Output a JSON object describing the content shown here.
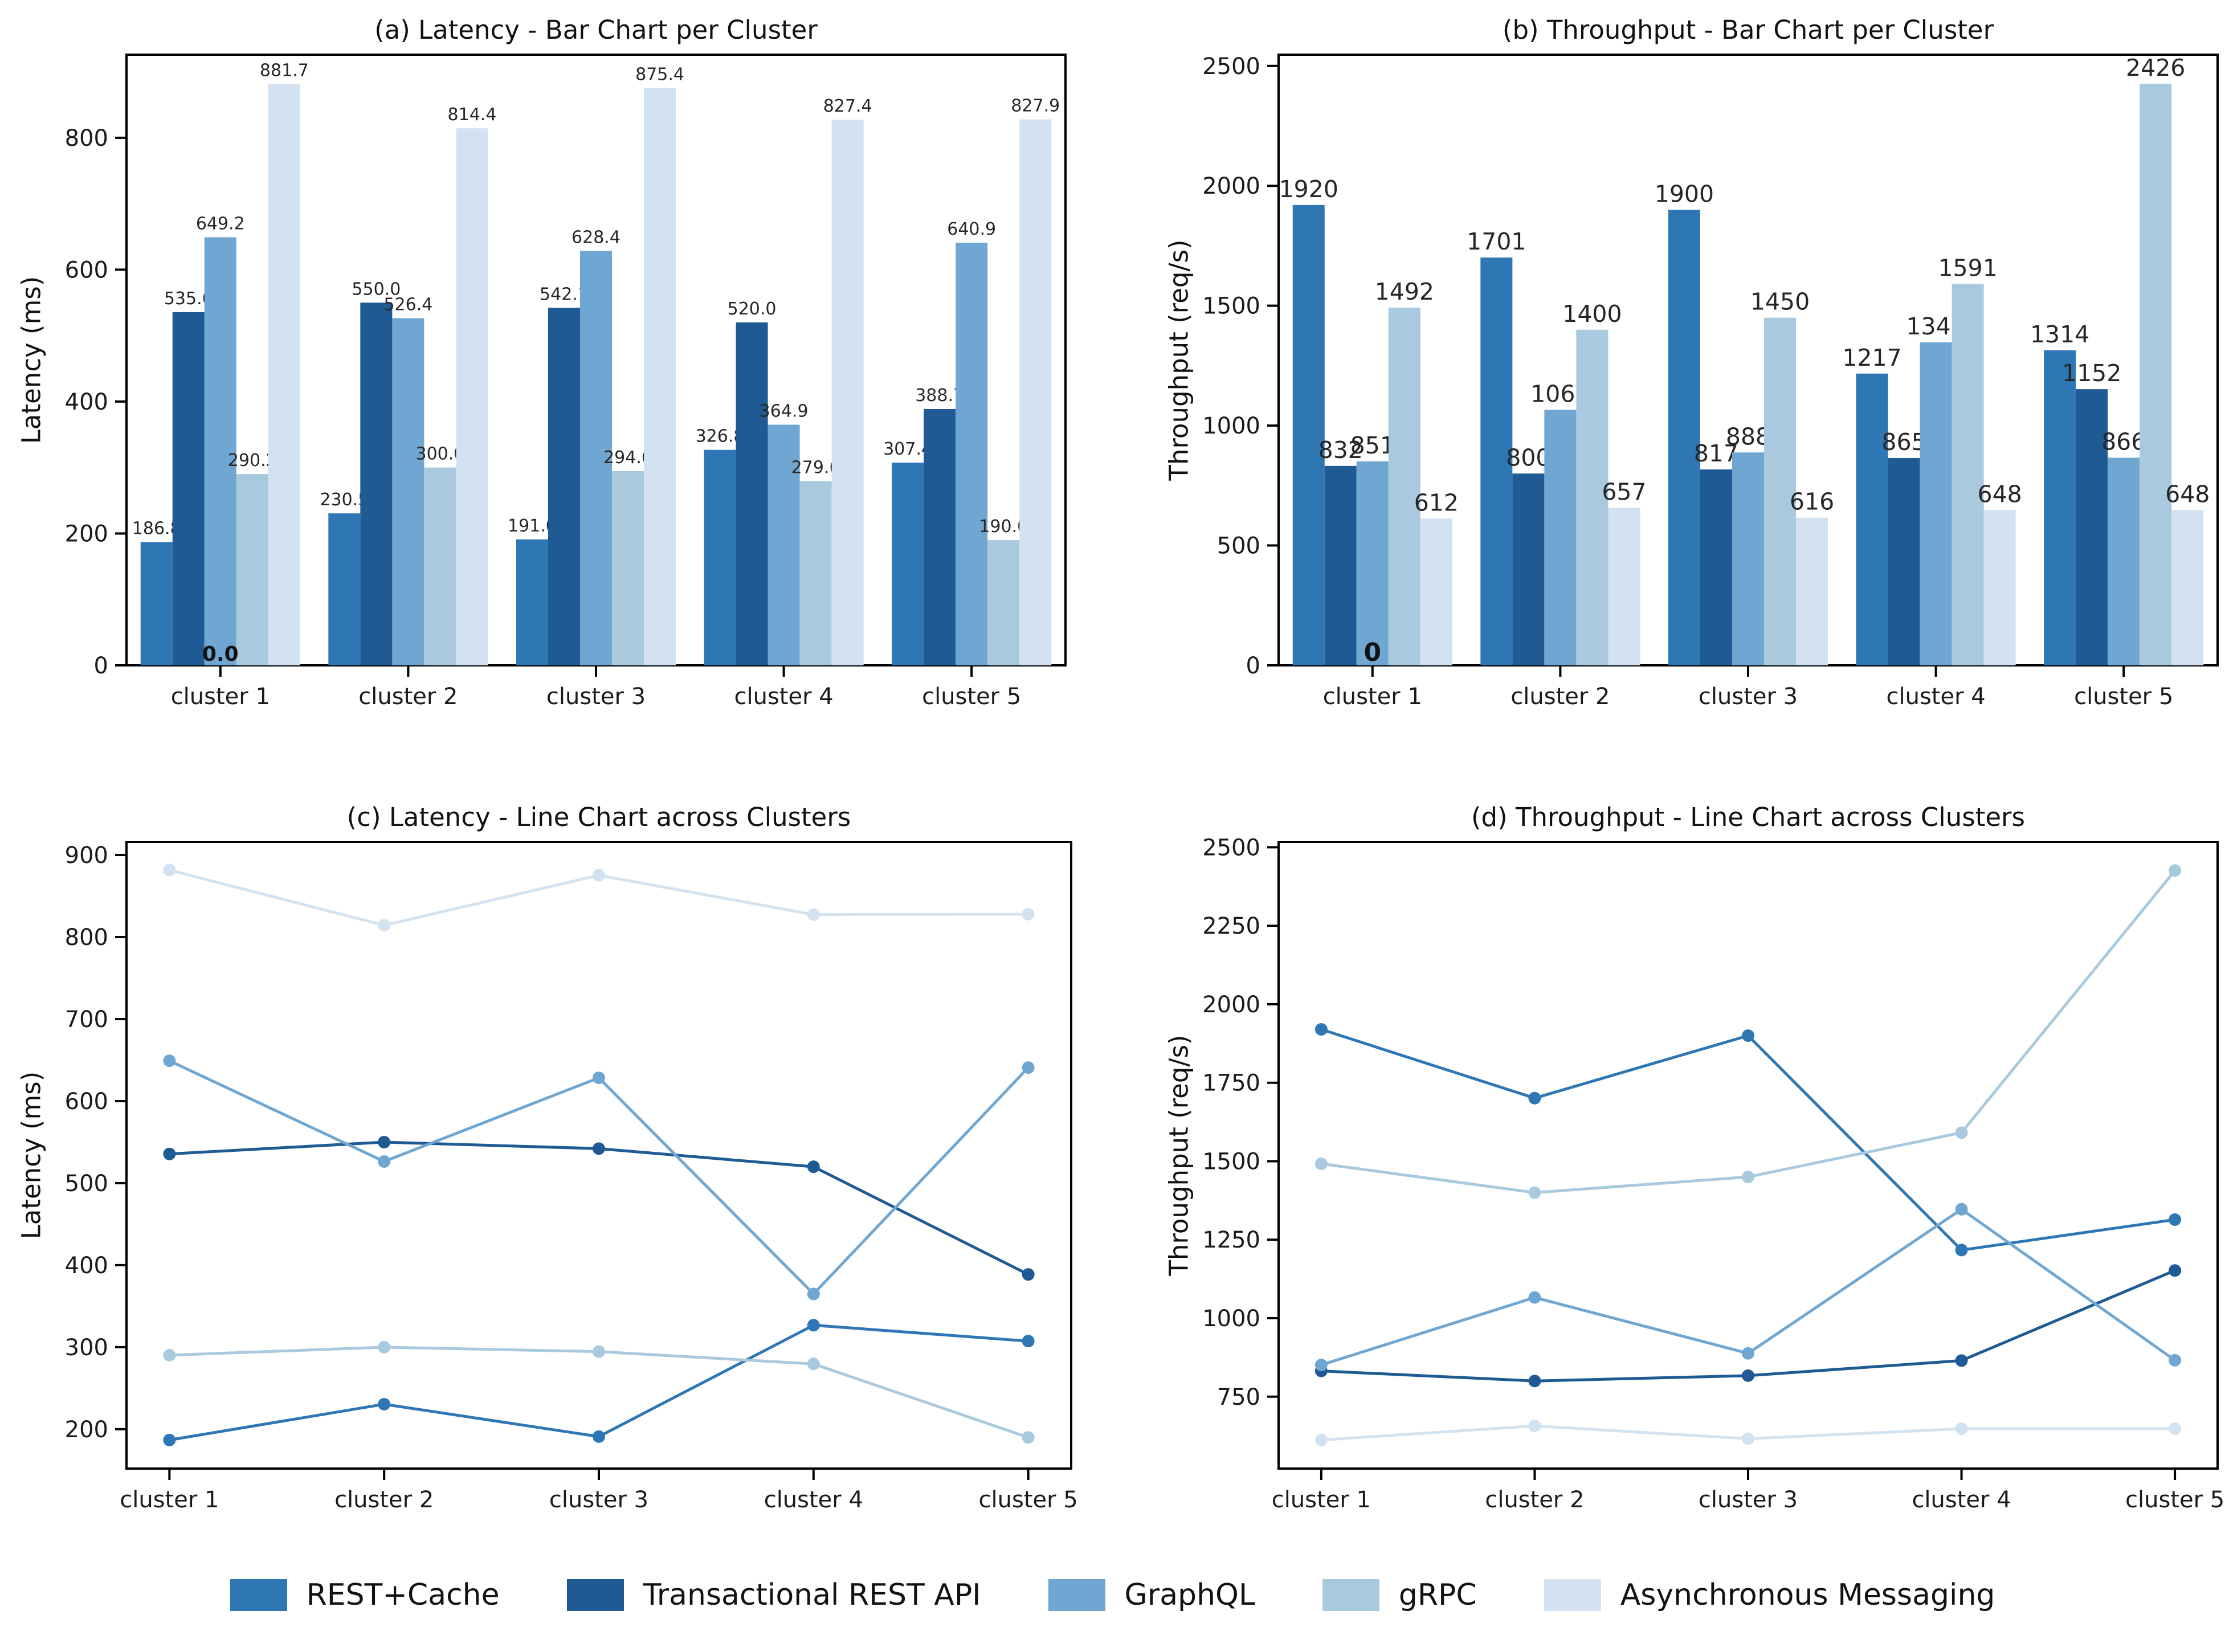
{
  "series_colors": [
    "#2f76b4",
    "#1f5a94",
    "#6fa7d2",
    "#a9cade",
    "#d3e2f1"
  ],
  "axis_color": "#000000",
  "tick_label_color": "#1a1a1a",
  "value_label_color": "#262626",
  "legend": {
    "position": "bottom center",
    "items": [
      "REST+Cache",
      "Transactional REST API",
      "GraphQL",
      "gRPC",
      "Asynchronous Messaging"
    ]
  },
  "chart_data": [
    {
      "id": "a",
      "type": "bar",
      "title": "(a) Latency - Bar Chart per Cluster",
      "xlabel": "",
      "ylabel": "Latency (ms)",
      "categories": [
        "cluster 1",
        "cluster 2",
        "cluster 3",
        "cluster 4",
        "cluster 5"
      ],
      "yticks": [
        0,
        200,
        400,
        600,
        800
      ],
      "ylim": [
        0,
        926
      ],
      "grid": false,
      "value_label_decimals": 1,
      "zero_annotation": "0.0",
      "series": [
        {
          "name": "REST+Cache",
          "values": [
            186.8,
            230.5,
            191.0,
            326.8,
            307.4
          ]
        },
        {
          "name": "Transactional REST API",
          "values": [
            535.6,
            550.0,
            542.1,
            520.0,
            388.7
          ]
        },
        {
          "name": "GraphQL",
          "values": [
            649.2,
            526.4,
            628.4,
            364.9,
            640.9
          ]
        },
        {
          "name": "gRPC",
          "values": [
            290.2,
            300.0,
            294.6,
            279.6,
            190.0
          ]
        },
        {
          "name": "Asynchronous Messaging",
          "values": [
            881.7,
            814.4,
            875.4,
            827.4,
            827.9
          ]
        }
      ]
    },
    {
      "id": "b",
      "type": "bar",
      "title": "(b) Throughput - Bar Chart per Cluster",
      "xlabel": "",
      "ylabel": "Throughput (req/s)",
      "categories": [
        "cluster 1",
        "cluster 2",
        "cluster 3",
        "cluster 4",
        "cluster 5"
      ],
      "yticks": [
        0,
        500,
        1000,
        1500,
        2000,
        2500
      ],
      "ylim": [
        0,
        2547
      ],
      "grid": false,
      "value_label_decimals": 0,
      "zero_annotation": "0",
      "series": [
        {
          "name": "REST+Cache",
          "values": [
            1920,
            1701,
            1900,
            1217,
            1314
          ]
        },
        {
          "name": "Transactional REST API",
          "values": [
            832,
            800,
            817,
            865,
            1152
          ]
        },
        {
          "name": "GraphQL",
          "values": [
            851,
            1066,
            888,
            1347,
            866
          ]
        },
        {
          "name": "gRPC",
          "values": [
            1492,
            1400,
            1450,
            1591,
            2426
          ]
        },
        {
          "name": "Asynchronous Messaging",
          "values": [
            612,
            657,
            616,
            648,
            648
          ]
        }
      ]
    },
    {
      "id": "c",
      "type": "line",
      "title": "(c) Latency - Line Chart across Clusters",
      "xlabel": "",
      "ylabel": "Latency (ms)",
      "categories": [
        "cluster 1",
        "cluster 2",
        "cluster 3",
        "cluster 4",
        "cluster 5"
      ],
      "yticks": [
        200,
        300,
        400,
        500,
        600,
        700,
        800,
        900
      ],
      "ylim": [
        152,
        916
      ],
      "grid": false,
      "series": [
        {
          "name": "REST+Cache",
          "values": [
            186.8,
            230.5,
            191.0,
            326.8,
            307.4
          ]
        },
        {
          "name": "Transactional REST API",
          "values": [
            535.6,
            550.0,
            542.1,
            520.0,
            388.7
          ]
        },
        {
          "name": "GraphQL",
          "values": [
            649.2,
            526.4,
            628.4,
            364.9,
            640.9
          ]
        },
        {
          "name": "gRPC",
          "values": [
            290.2,
            300.0,
            294.6,
            279.6,
            190.0
          ]
        },
        {
          "name": "Asynchronous Messaging",
          "values": [
            881.7,
            814.4,
            875.4,
            827.4,
            827.9
          ]
        }
      ]
    },
    {
      "id": "d",
      "type": "line",
      "title": "(d) Throughput - Line Chart across Clusters",
      "xlabel": "",
      "ylabel": "Throughput (req/s)",
      "categories": [
        "cluster 1",
        "cluster 2",
        "cluster 3",
        "cluster 4",
        "cluster 5"
      ],
      "yticks": [
        750,
        1000,
        1250,
        1500,
        1750,
        2000,
        2250,
        2500
      ],
      "ylim": [
        521,
        2517
      ],
      "grid": false,
      "series": [
        {
          "name": "REST+Cache",
          "values": [
            1920,
            1701,
            1900,
            1217,
            1314
          ]
        },
        {
          "name": "Transactional REST API",
          "values": [
            832,
            800,
            817,
            865,
            1152
          ]
        },
        {
          "name": "GraphQL",
          "values": [
            851,
            1066,
            888,
            1347,
            866
          ]
        },
        {
          "name": "gRPC",
          "values": [
            1492,
            1400,
            1450,
            1591,
            2426
          ]
        },
        {
          "name": "Asynchronous Messaging",
          "values": [
            612,
            657,
            616,
            648,
            648
          ]
        }
      ]
    }
  ]
}
